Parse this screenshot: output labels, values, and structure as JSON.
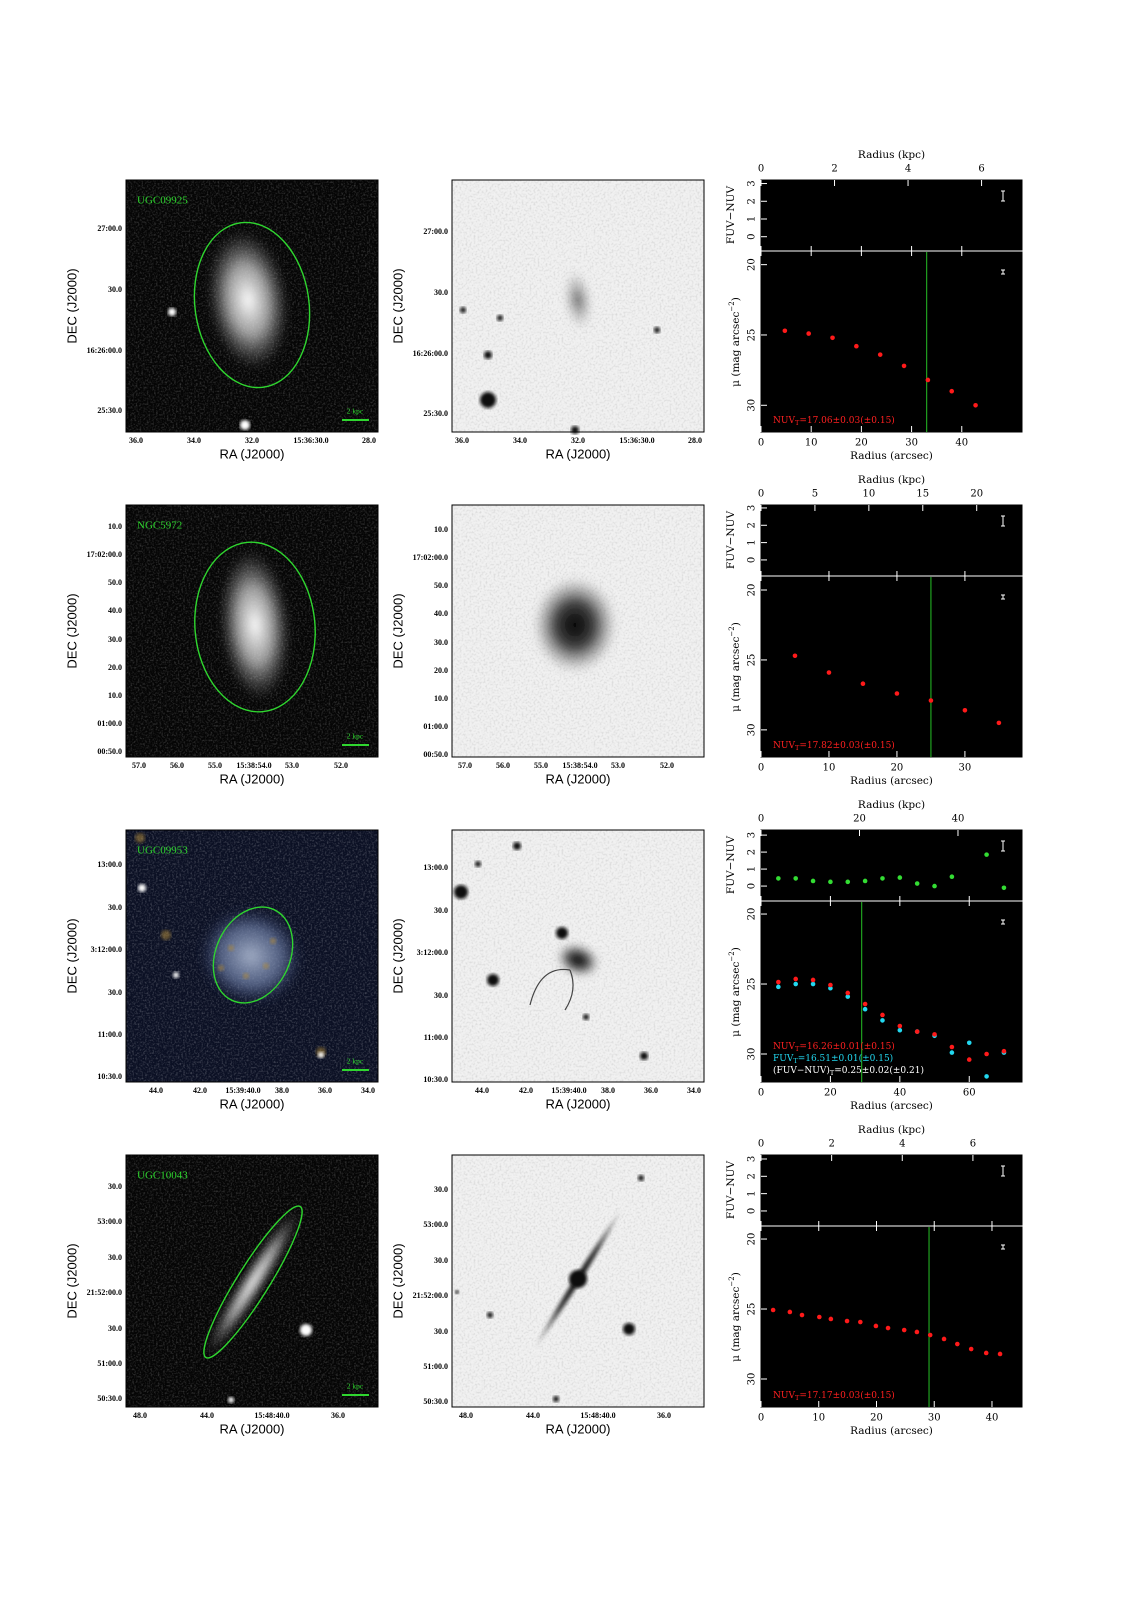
{
  "figure": {
    "axis_labels": {
      "dec": "DEC (J2000)",
      "ra": "RA (J2000)",
      "radius_kpc": "Radius (kpc)",
      "radius_arcsec": "Radius (arcsec)",
      "color": "FUV−NUV",
      "mu": "μ (mag arcsec",
      "mu_exp": "−2",
      "mu_close": ")"
    },
    "scale_bar": "2 kpc",
    "rows": [
      {
        "name": "UGC09925",
        "dec_ticks": [
          "27:00.0",
          "30.0",
          "16:26:00.0",
          "25:30.0"
        ],
        "ra_ticks": [
          "36.0",
          "34.0",
          "32.0",
          "15:36:30.0",
          "28.0"
        ],
        "profile": {
          "type": "scatter",
          "xlim": [
            0,
            52
          ],
          "xticks": [
            0,
            10,
            20,
            30,
            40
          ],
          "kpc_lim": [
            0,
            7.1
          ],
          "kpc_ticks": [
            0,
            2,
            4,
            6
          ],
          "color_ylim": [
            -0.75,
            3.2
          ],
          "color_yticks": [
            0,
            1,
            2,
            3
          ],
          "mu_ylim": [
            31.9,
            19.1
          ],
          "mu_yticks": [
            20,
            25,
            30
          ],
          "radius_line": 33.0,
          "series": [
            {
              "color": "#ff1a1a",
              "panel": "mu",
              "x": [
                4.75,
                9.5,
                14.25,
                19,
                23.75,
                28.5,
                33.25,
                38,
                42.75
              ],
              "values": [
                24.7,
                24.9,
                25.2,
                25.8,
                26.4,
                27.2,
                28.2,
                29.0,
                30.0
              ]
            }
          ],
          "annotations": [
            {
              "label": "NUV",
              "sub": "T",
              "text": "=17.06±0.03(±0.15)",
              "color": "#ff2020"
            }
          ]
        }
      },
      {
        "name": "NGC5972",
        "dec_ticks": [
          "10.0",
          "17:02:00.0",
          "50.0",
          "40.0",
          "30.0",
          "20.0",
          "10.0",
          "01:00.0",
          "00:50.0"
        ],
        "ra_ticks": [
          "57.0",
          "56.0",
          "55.0",
          "15:38:54.0",
          "53.0",
          "52.0"
        ],
        "profile": {
          "type": "scatter",
          "xlim": [
            0,
            38.4
          ],
          "xticks": [
            0,
            10,
            20,
            30
          ],
          "kpc_lim": [
            0,
            24.2
          ],
          "kpc_ticks": [
            0,
            5,
            10,
            15,
            20
          ],
          "color_ylim": [
            -0.87,
            3.17
          ],
          "color_yticks": [
            0,
            1,
            2,
            3
          ],
          "mu_ylim": [
            31.94,
            19.07
          ],
          "mu_yticks": [
            20,
            25,
            30
          ],
          "radius_line": 25,
          "series": [
            {
              "color": "#ff1a1a",
              "panel": "mu",
              "x": [
                5,
                10,
                15,
                20,
                25,
                30,
                35
              ],
              "values": [
                24.7,
                25.9,
                26.7,
                27.4,
                27.9,
                28.6,
                29.5
              ]
            }
          ],
          "annotations": [
            {
              "label": "NUV",
              "sub": "T",
              "text": "=17.82±0.03(±0.15)",
              "color": "#ff2020"
            }
          ]
        }
      },
      {
        "name": "UGC09953",
        "dec_ticks": [
          "13:00.0",
          "30.0",
          "3:12:00.0",
          "30.0",
          "11:00.0",
          "10:30.0"
        ],
        "ra_ticks": [
          "44.0",
          "42.0",
          "15:39:40.0",
          "38.0",
          "36.0",
          "34.0"
        ],
        "profile": {
          "type": "scatter",
          "xlim": [
            0,
            75.2
          ],
          "xticks": [
            0,
            20,
            40,
            60
          ],
          "kpc_lim": [
            0,
            53
          ],
          "kpc_ticks": [
            0,
            20,
            40
          ],
          "color_ylim": [
            -0.82,
            3.3
          ],
          "color_yticks": [
            0,
            1,
            2,
            3
          ],
          "mu_ylim": [
            32.0,
            19.14
          ],
          "mu_yticks": [
            20,
            25,
            30
          ],
          "radius_line": 29,
          "series": [
            {
              "color": "#33dd33",
              "panel": "color",
              "x": [
                5,
                10,
                15,
                20,
                25,
                30,
                35,
                40,
                45,
                50,
                55,
                60,
                65,
                70
              ],
              "values": [
                0.45,
                0.45,
                0.3,
                0.25,
                0.25,
                0.3,
                0.45,
                0.5,
                0.15,
                0,
                0.55,
                null,
                1.85,
                -0.1
              ]
            },
            {
              "color": "#22d8f0",
              "panel": "mu",
              "x": [
                5,
                10,
                15,
                20,
                25,
                30,
                35,
                40,
                45,
                50,
                55,
                60,
                65,
                70
              ],
              "values": [
                25.2,
                25.0,
                25.0,
                25.3,
                25.9,
                26.8,
                27.6,
                28.3,
                28.4,
                28.7,
                29.9,
                29.2,
                31.6,
                29.9
              ]
            },
            {
              "color": "#ff1a1a",
              "panel": "mu",
              "x": [
                5,
                10,
                15,
                20,
                25,
                30,
                35,
                40,
                45,
                50,
                55,
                60,
                65,
                70
              ],
              "values": [
                24.86,
                24.64,
                24.71,
                25.07,
                25.64,
                26.43,
                27.21,
                28.0,
                28.4,
                28.6,
                29.5,
                30.4,
                30.0,
                29.8
              ]
            }
          ],
          "annotations": [
            {
              "label": "NUV",
              "sub": "T",
              "text": "=16.26±0.01(±0.15)",
              "color": "#ff2020"
            },
            {
              "label": "FUV",
              "sub": "T",
              "text": "=16.51±0.01(±0.15)",
              "color": "#22d8f0"
            },
            {
              "label": "(FUV−NUV)",
              "sub": "T",
              "text": "=0.25±0.02(±0.21)",
              "color": "#ffffff"
            }
          ]
        }
      },
      {
        "name": "UGC10043",
        "dec_ticks": [
          "30.0",
          "53:00.0",
          "30.0",
          "21:52:00.0",
          "30.0",
          "51:00.0",
          "50:30.0"
        ],
        "ra_ticks": [
          "48.0",
          "44.0",
          "15:48:40.0",
          "36.0"
        ],
        "profile": {
          "type": "scatter",
          "xlim": [
            0,
            45.2
          ],
          "xticks": [
            0,
            10,
            20,
            30,
            40
          ],
          "kpc_lim": [
            0,
            7.39
          ],
          "kpc_ticks": [
            0,
            2,
            4,
            6
          ],
          "color_ylim": [
            -0.81,
            3.23
          ],
          "color_yticks": [
            0,
            1,
            2,
            3
          ],
          "mu_ylim": [
            32.0,
            19.14
          ],
          "mu_yticks": [
            20,
            25,
            30
          ],
          "radius_line": 29.1,
          "series": [
            {
              "color": "#ff1a1a",
              "panel": "mu",
              "x": [
                2.1,
                5.0,
                7.1,
                10.1,
                12.1,
                14.9,
                17.2,
                19.9,
                22.0,
                24.8,
                27.0,
                29.3,
                31.7,
                34.0,
                36.4,
                39.0,
                41.4
              ],
              "values": [
                25.07,
                25.21,
                25.43,
                25.57,
                25.71,
                25.86,
                25.93,
                26.21,
                26.36,
                26.5,
                26.64,
                26.86,
                27.14,
                27.5,
                27.86,
                28.14,
                28.21
              ]
            }
          ],
          "annotations": [
            {
              "label": "NUV",
              "sub": "T",
              "text": "=17.17±0.03(±0.15)",
              "color": "#ff2020"
            }
          ]
        }
      }
    ]
  }
}
